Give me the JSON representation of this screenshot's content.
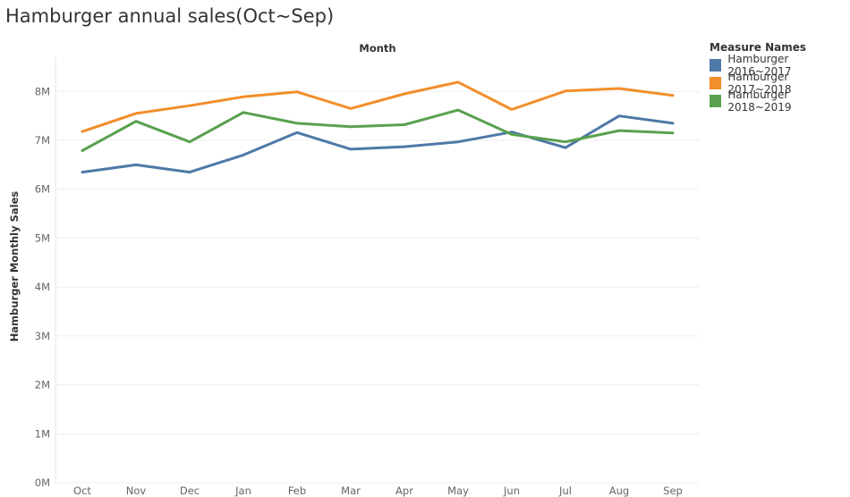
{
  "chart_data": {
    "type": "line",
    "title": "Hamburger annual sales(Oct~Sep)",
    "xlabel": "Month",
    "ylabel": "Hamburger Monthly Sales",
    "categories": [
      "Oct",
      "Nov",
      "Dec",
      "Jan",
      "Feb",
      "Mar",
      "Apr",
      "May",
      "Jun",
      "Jul",
      "Aug",
      "Sep"
    ],
    "ylim": [
      0,
      8700000
    ],
    "yticks": [
      0,
      1000000,
      2000000,
      3000000,
      4000000,
      5000000,
      6000000,
      7000000,
      8000000
    ],
    "ytick_labels": [
      "0M",
      "1M",
      "2M",
      "3M",
      "4M",
      "5M",
      "6M",
      "7M",
      "8M"
    ],
    "grid": true,
    "legend_title": "Measure Names",
    "legend_position": "right",
    "series": [
      {
        "name": "Hamburger 2016~2017",
        "color": "#4e79a7",
        "values": [
          6350000,
          6500000,
          6350000,
          6700000,
          7160000,
          6820000,
          6870000,
          6970000,
          7170000,
          6850000,
          7500000,
          7350000
        ]
      },
      {
        "name": "Hamburger 2017~2018",
        "color": "#f28e2b",
        "values": [
          7180000,
          7550000,
          7710000,
          7890000,
          7990000,
          7650000,
          7950000,
          8190000,
          7630000,
          8010000,
          8060000,
          7920000
        ]
      },
      {
        "name": "Hamburger 2018~2019",
        "color": "#59a14f",
        "values": [
          6790000,
          7390000,
          6970000,
          7570000,
          7350000,
          7280000,
          7320000,
          7620000,
          7120000,
          6970000,
          7200000,
          7150000
        ]
      }
    ]
  }
}
